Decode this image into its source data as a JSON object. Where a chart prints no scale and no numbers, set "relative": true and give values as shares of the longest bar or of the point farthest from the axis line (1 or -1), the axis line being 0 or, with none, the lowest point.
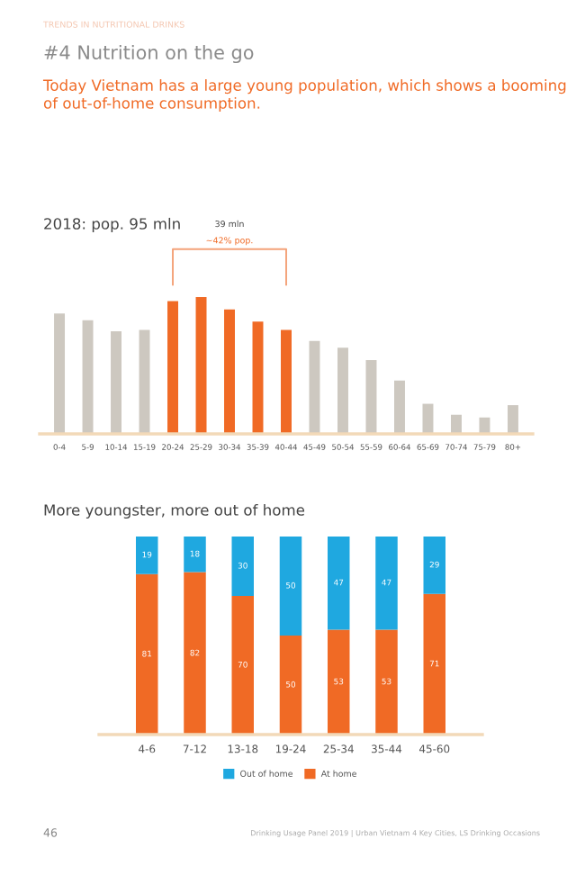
{
  "chart_data": [
    {
      "type": "bar",
      "relative": true,
      "title": "#4 Nutrition on the go",
      "subtitle": "Today Vietnam has a large young population, which shows a booming of out-of-home consumption.",
      "categories": [
        "0-4",
        "5-9",
        "10-14",
        "15-19",
        "20-24",
        "25-29",
        "30-34",
        "35-39",
        "40-44",
        "45-49",
        "50-54",
        "55-59",
        "60-64",
        "65-69",
        "70-74",
        "75-79",
        "80+"
      ],
      "values": [
        0.88,
        0.83,
        0.75,
        0.76,
        0.97,
        1,
        0.91,
        0.82,
        0.76,
        0.68,
        0.63,
        0.54,
        0.39,
        0.22,
        0.14,
        0.12,
        0.21
      ],
      "colors": [
        "#cdc8c0",
        "#cdc8c0",
        "#cdc8c0",
        "#cdc8c0",
        "#f06a25",
        "#f06a25",
        "#f06a25",
        "#f06a25",
        "#f06a25",
        "#cdc8c0",
        "#cdc8c0",
        "#cdc8c0",
        "#cdc8c0",
        "#cdc8c0",
        "#cdc8c0",
        "#cdc8c0",
        "#cdc8c0"
      ],
      "annotations": [
        "TRENDS IN NUTRITIONAL DRINKS",
        "2018: pop. 95 mln",
        "39 mln",
        "~42% pop."
      ],
      "grid": false
    },
    {
      "type": "bar",
      "stacked": true,
      "title": "More youngster, more out of home",
      "categories": [
        "4-6",
        "7-12",
        "13-18",
        "19-24",
        "25-34",
        "35-44",
        "45-60"
      ],
      "series": [
        {
          "name": "At home",
          "color": "#f06a25",
          "values": [
            81,
            82,
            70,
            50,
            53,
            53,
            71
          ]
        },
        {
          "name": "Out of home",
          "color": "#1fa8e0",
          "values": [
            19,
            18,
            30,
            50,
            47,
            47,
            29
          ]
        }
      ],
      "ylim": [
        0,
        100
      ],
      "tick_labels": "x",
      "data_labels": true,
      "grid": false,
      "legend": "bottom",
      "annotations": [
        "46",
        "Drinking Usage Panel 2019 | Urban Vietnam 4 Key Cities, LS Drinking Occasions"
      ]
    }
  ]
}
